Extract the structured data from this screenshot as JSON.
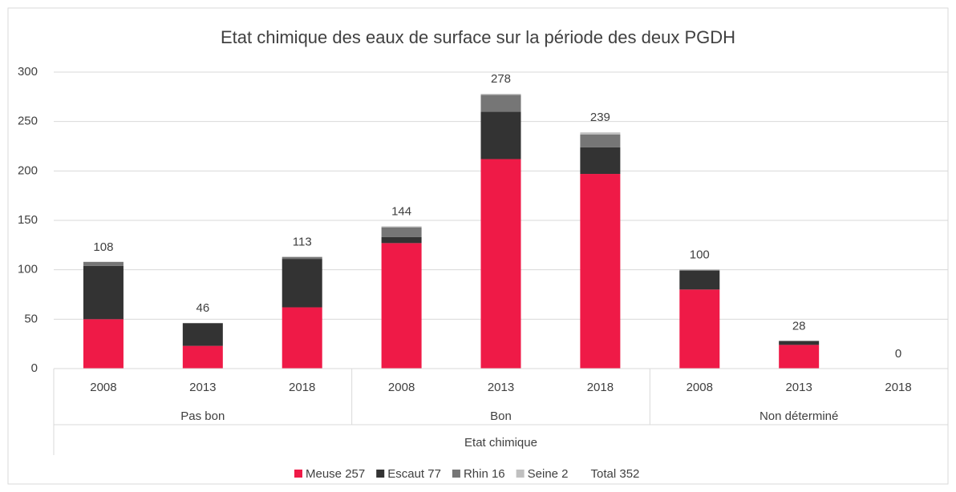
{
  "chart_data": {
    "type": "stacked_bar",
    "title": "Etat chimique des eaux de surface sur la période des deux PGDH",
    "x_label": "Etat chimique",
    "groups": [
      {
        "name": "Pas bon",
        "categories": [
          "2008",
          "2013",
          "2018"
        ]
      },
      {
        "name": "Bon",
        "categories": [
          "2008",
          "2013",
          "2018"
        ]
      },
      {
        "name": "Non déterminé",
        "categories": [
          "2008",
          "2013",
          "2018"
        ]
      }
    ],
    "series": [
      {
        "name": "Meuse 257",
        "color": "#ef1a47",
        "values": [
          50,
          23,
          62,
          127,
          212,
          197,
          80,
          24,
          0
        ]
      },
      {
        "name": "Escaut 77",
        "color": "#333333",
        "values": [
          54,
          23,
          49,
          6,
          48,
          27,
          19,
          4,
          0
        ]
      },
      {
        "name": "Rhin 16",
        "color": "#767676",
        "values": [
          4,
          0,
          2,
          10,
          17,
          13,
          1,
          0,
          0
        ]
      },
      {
        "name": "Seine 2",
        "color": "#c0c0c0",
        "values": [
          0,
          0,
          0,
          1,
          1,
          2,
          0,
          0,
          0
        ]
      }
    ],
    "totals": [
      108,
      46,
      113,
      144,
      278,
      239,
      100,
      28,
      0
    ],
    "legend_total": "Total 352",
    "ylim": [
      0,
      300
    ],
    "yticks": [
      0,
      50,
      100,
      150,
      200,
      250,
      300
    ],
    "grid": true
  }
}
